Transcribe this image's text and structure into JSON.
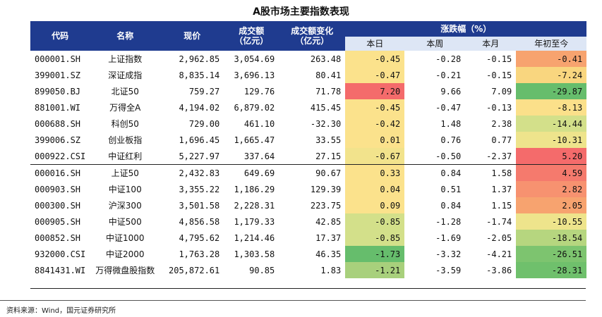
{
  "title": "A股市场主要指数表现",
  "headers": {
    "code": "代码",
    "name": "名称",
    "price": "现价",
    "volume": "成交额\n（亿元）",
    "volume_change": "成交额变化\n（亿元）",
    "pct_group": "涨跌幅（%）",
    "day": "本日",
    "week": "本周",
    "month": "本月",
    "ytd": "年初至今"
  },
  "rows": [
    {
      "code": "000001.SH",
      "name": "上证指数",
      "price": "2,962.85",
      "volume": "3,054.69",
      "vchg": "263.48",
      "day": "-0.45",
      "week": "-0.28",
      "month": "-0.15",
      "ytd": "-0.41",
      "day_color": "#fbe28c",
      "ytd_color": "#f7a36f"
    },
    {
      "code": "399001.SZ",
      "name": "深证成指",
      "price": "8,835.14",
      "volume": "3,696.13",
      "vchg": "80.41",
      "day": "-0.47",
      "week": "-0.21",
      "month": "-0.15",
      "ytd": "-7.24",
      "day_color": "#fbe28c",
      "ytd_color": "#f9d67f"
    },
    {
      "code": "899050.BJ",
      "name": "北证50",
      "price": "759.27",
      "volume": "129.76",
      "vchg": "71.78",
      "day": "7.20",
      "week": "9.66",
      "month": "7.09",
      "ytd": "-29.87",
      "day_color": "#f46b6b",
      "ytd_color": "#66bd6c"
    },
    {
      "code": "881001.WI",
      "name": "万得全A",
      "price": "4,194.02",
      "volume": "6,879.02",
      "vchg": "415.45",
      "day": "-0.45",
      "week": "-0.47",
      "month": "-0.13",
      "ytd": "-8.13",
      "day_color": "#fbe28c",
      "ytd_color": "#fbe08a"
    },
    {
      "code": "000688.SH",
      "name": "科创50",
      "price": "729.00",
      "volume": "461.10",
      "vchg": "-32.30",
      "day": "-0.42",
      "week": "1.48",
      "month": "2.38",
      "ytd": "-14.44",
      "day_color": "#fbe28c",
      "ytd_color": "#d3e08a"
    },
    {
      "code": "399006.SZ",
      "name": "创业板指",
      "price": "1,696.45",
      "volume": "1,665.47",
      "vchg": "33.55",
      "day": "0.01",
      "week": "0.76",
      "month": "0.77",
      "ytd": "-10.31",
      "day_color": "#fbe28c",
      "ytd_color": "#eee48c"
    },
    {
      "code": "000922.CSI",
      "name": "中证红利",
      "price": "5,227.97",
      "volume": "337.64",
      "vchg": "27.15",
      "day": "-0.67",
      "week": "-0.50",
      "month": "-2.37",
      "ytd": "5.20",
      "day_color": "#f2e38c",
      "ytd_color": "#f46b6b"
    },
    {
      "code": "000016.SH",
      "name": "上证50",
      "price": "2,432.83",
      "volume": "649.69",
      "vchg": "90.67",
      "day": "0.33",
      "week": "0.84",
      "month": "1.58",
      "ytd": "4.59",
      "day_color": "#fbe28c",
      "ytd_color": "#f57a6d"
    },
    {
      "code": "000903.SH",
      "name": "中证100",
      "price": "3,355.22",
      "volume": "1,186.29",
      "vchg": "129.39",
      "day": "0.04",
      "week": "0.51",
      "month": "1.37",
      "ytd": "2.82",
      "day_color": "#fbe28c",
      "ytd_color": "#f79270"
    },
    {
      "code": "000300.SH",
      "name": "沪深300",
      "price": "3,501.58",
      "volume": "2,228.31",
      "vchg": "223.75",
      "day": "0.09",
      "week": "0.84",
      "month": "1.15",
      "ytd": "2.05",
      "day_color": "#fbe28c",
      "ytd_color": "#f7a36f"
    },
    {
      "code": "000905.SH",
      "name": "中证500",
      "price": "4,856.58",
      "volume": "1,179.33",
      "vchg": "42.85",
      "day": "-0.85",
      "week": "-1.28",
      "month": "-1.74",
      "ytd": "-10.55",
      "day_color": "#d3e08a",
      "ytd_color": "#eee48c"
    },
    {
      "code": "000852.SH",
      "name": "中证1000",
      "price": "4,795.62",
      "volume": "1,214.46",
      "vchg": "17.37",
      "day": "-0.85",
      "week": "-1.69",
      "month": "-2.05",
      "ytd": "-18.54",
      "day_color": "#d3e08a",
      "ytd_color": "#b6d67f"
    },
    {
      "code": "932000.CSI",
      "name": "中证2000",
      "price": "1,763.28",
      "volume": "1,303.58",
      "vchg": "46.35",
      "day": "-1.73",
      "week": "-3.32",
      "month": "-4.21",
      "ytd": "-26.51",
      "day_color": "#66bd6c",
      "ytd_color": "#7dc46f"
    },
    {
      "code": "8841431.WI",
      "name": "万得微盘股指数",
      "price": "205,872.61",
      "volume": "90.85",
      "vchg": "1.83",
      "day": "-1.21",
      "week": "-3.59",
      "month": "-3.86",
      "ytd": "-28.31",
      "day_color": "#a8d07c",
      "ytd_color": "#6fc06c"
    }
  ],
  "source": "资料来源：Wind，国元证券研究所"
}
